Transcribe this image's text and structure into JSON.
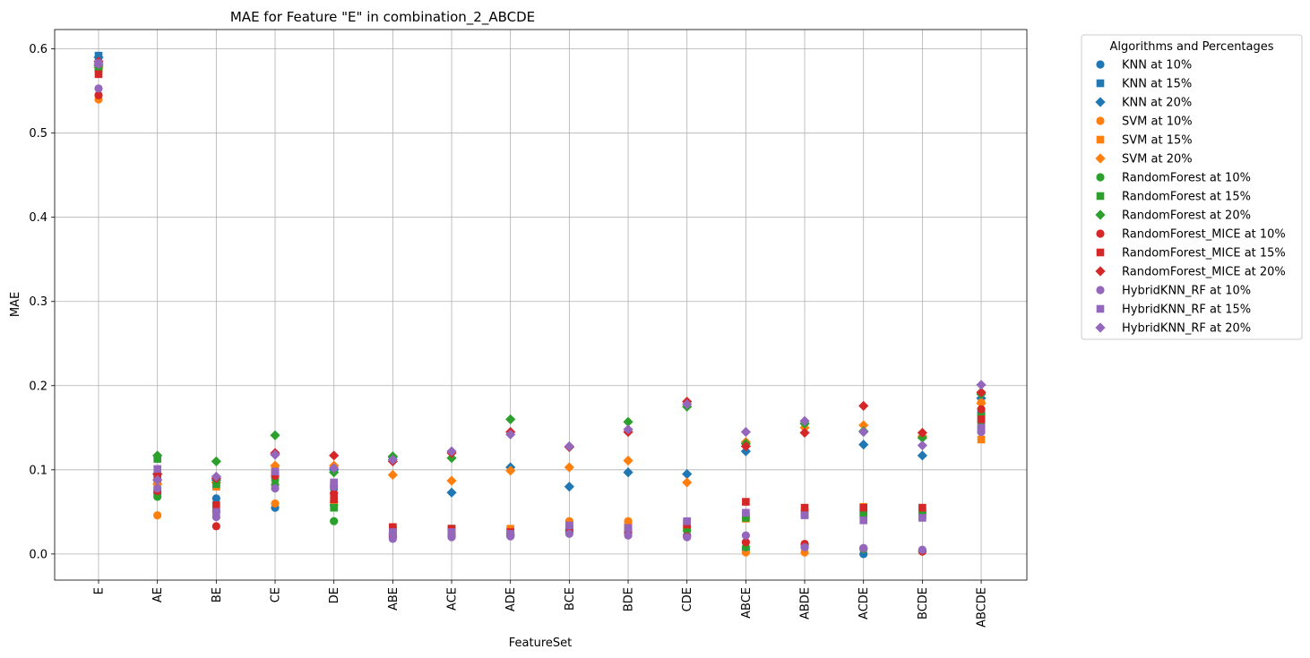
{
  "chart_data": {
    "type": "scatter",
    "title": "MAE for Feature \"E\" in combination_2_ABCDE",
    "xlabel": "FeatureSet",
    "ylabel": "MAE",
    "ylim": [
      -0.031,
      0.623
    ],
    "yticks": [
      0.0,
      0.1,
      0.2,
      0.3,
      0.4,
      0.5,
      0.6
    ],
    "ytick_labels": [
      "0.0",
      "0.1",
      "0.2",
      "0.3",
      "0.4",
      "0.5",
      "0.6"
    ],
    "grid": true,
    "categories": [
      "E",
      "AE",
      "BE",
      "CE",
      "DE",
      "ABE",
      "ACE",
      "ADE",
      "BCE",
      "BDE",
      "CDE",
      "ABCE",
      "ABDE",
      "ACDE",
      "BCDE",
      "ABCDE"
    ],
    "legend": {
      "title": "Algorithms and Percentages",
      "placement": "outside-upper-right"
    },
    "series": [
      {
        "name": "KNN at 10%",
        "color": "#1f77b4",
        "marker": "circle",
        "values": [
          0.583,
          0.072,
          0.066,
          0.055,
          0.058,
          0.022,
          0.025,
          0.024,
          0.03,
          0.026,
          0.022,
          0.005,
          0.008,
          0.0,
          0.004,
          0.168
        ]
      },
      {
        "name": "KNN at 15%",
        "color": "#1f77b4",
        "marker": "square",
        "values": [
          0.592,
          0.085,
          0.082,
          0.095,
          0.08,
          0.03,
          0.03,
          0.028,
          0.035,
          0.032,
          0.038,
          0.045,
          0.048,
          0.048,
          0.047,
          0.148
        ]
      },
      {
        "name": "KNN at 20%",
        "color": "#1f77b4",
        "marker": "diamond",
        "values": [
          0.59,
          0.095,
          0.088,
          0.118,
          0.1,
          0.115,
          0.073,
          0.103,
          0.08,
          0.097,
          0.095,
          0.122,
          0.155,
          0.13,
          0.117,
          0.185
        ]
      },
      {
        "name": "SVM at 10%",
        "color": "#ff7f0e",
        "marker": "circle",
        "values": [
          0.54,
          0.046,
          0.052,
          0.06,
          0.062,
          0.024,
          0.024,
          0.026,
          0.039,
          0.039,
          0.03,
          0.002,
          0.002,
          0.006,
          0.003,
          0.18
        ]
      },
      {
        "name": "SVM at 15%",
        "color": "#ff7f0e",
        "marker": "square",
        "values": [
          0.575,
          0.08,
          0.08,
          0.1,
          0.082,
          0.028,
          0.028,
          0.03,
          0.033,
          0.035,
          0.032,
          0.042,
          0.05,
          0.056,
          0.05,
          0.136
        ]
      },
      {
        "name": "SVM at 20%",
        "color": "#ff7f0e",
        "marker": "diamond",
        "values": [
          0.578,
          0.083,
          0.085,
          0.105,
          0.105,
          0.094,
          0.087,
          0.099,
          0.103,
          0.111,
          0.085,
          0.133,
          0.15,
          0.153,
          0.14,
          0.179
        ]
      },
      {
        "name": "RandomForest at 10%",
        "color": "#2ca02c",
        "marker": "circle",
        "values": [
          0.575,
          0.068,
          0.05,
          0.082,
          0.039,
          0.025,
          0.022,
          0.022,
          0.028,
          0.028,
          0.028,
          0.008,
          0.01,
          0.006,
          0.004,
          0.165
        ]
      },
      {
        "name": "RandomForest at 15%",
        "color": "#2ca02c",
        "marker": "square",
        "values": [
          0.577,
          0.113,
          0.083,
          0.09,
          0.055,
          0.03,
          0.03,
          0.025,
          0.03,
          0.03,
          0.036,
          0.043,
          0.047,
          0.047,
          0.046,
          0.158
        ]
      },
      {
        "name": "RandomForest at 20%",
        "color": "#2ca02c",
        "marker": "diamond",
        "values": [
          0.58,
          0.117,
          0.11,
          0.141,
          0.097,
          0.116,
          0.114,
          0.16,
          0.127,
          0.157,
          0.175,
          0.131,
          0.155,
          0.146,
          0.138,
          0.19
        ]
      },
      {
        "name": "RandomForest_MICE at 10%",
        "color": "#d62728",
        "marker": "circle",
        "values": [
          0.545,
          0.075,
          0.033,
          0.093,
          0.072,
          0.02,
          0.021,
          0.022,
          0.026,
          0.025,
          0.021,
          0.014,
          0.012,
          0.007,
          0.003,
          0.172
        ]
      },
      {
        "name": "RandomForest_MICE at 15%",
        "color": "#d62728",
        "marker": "square",
        "values": [
          0.57,
          0.093,
          0.058,
          0.095,
          0.065,
          0.032,
          0.03,
          0.026,
          0.032,
          0.03,
          0.035,
          0.062,
          0.055,
          0.055,
          0.055,
          0.16
        ]
      },
      {
        "name": "RandomForest_MICE at 20%",
        "color": "#d62728",
        "marker": "diamond",
        "values": [
          0.585,
          0.095,
          0.09,
          0.12,
          0.117,
          0.11,
          0.12,
          0.145,
          0.127,
          0.145,
          0.181,
          0.128,
          0.144,
          0.176,
          0.144,
          0.192
        ]
      },
      {
        "name": "HybridKNN_RF at 10%",
        "color": "#9467bd",
        "marker": "circle",
        "values": [
          0.553,
          0.078,
          0.044,
          0.078,
          0.08,
          0.018,
          0.02,
          0.021,
          0.024,
          0.022,
          0.02,
          0.022,
          0.008,
          0.007,
          0.005,
          0.145
        ]
      },
      {
        "name": "HybridKNN_RF at 15%",
        "color": "#9467bd",
        "marker": "square",
        "values": [
          0.583,
          0.101,
          0.05,
          0.098,
          0.085,
          0.026,
          0.026,
          0.024,
          0.034,
          0.031,
          0.039,
          0.049,
          0.046,
          0.04,
          0.043,
          0.15
        ]
      },
      {
        "name": "HybridKNN_RF at 20%",
        "color": "#9467bd",
        "marker": "diamond",
        "values": [
          0.582,
          0.088,
          0.092,
          0.118,
          0.102,
          0.112,
          0.122,
          0.142,
          0.128,
          0.148,
          0.178,
          0.145,
          0.158,
          0.145,
          0.129,
          0.201
        ]
      }
    ]
  }
}
